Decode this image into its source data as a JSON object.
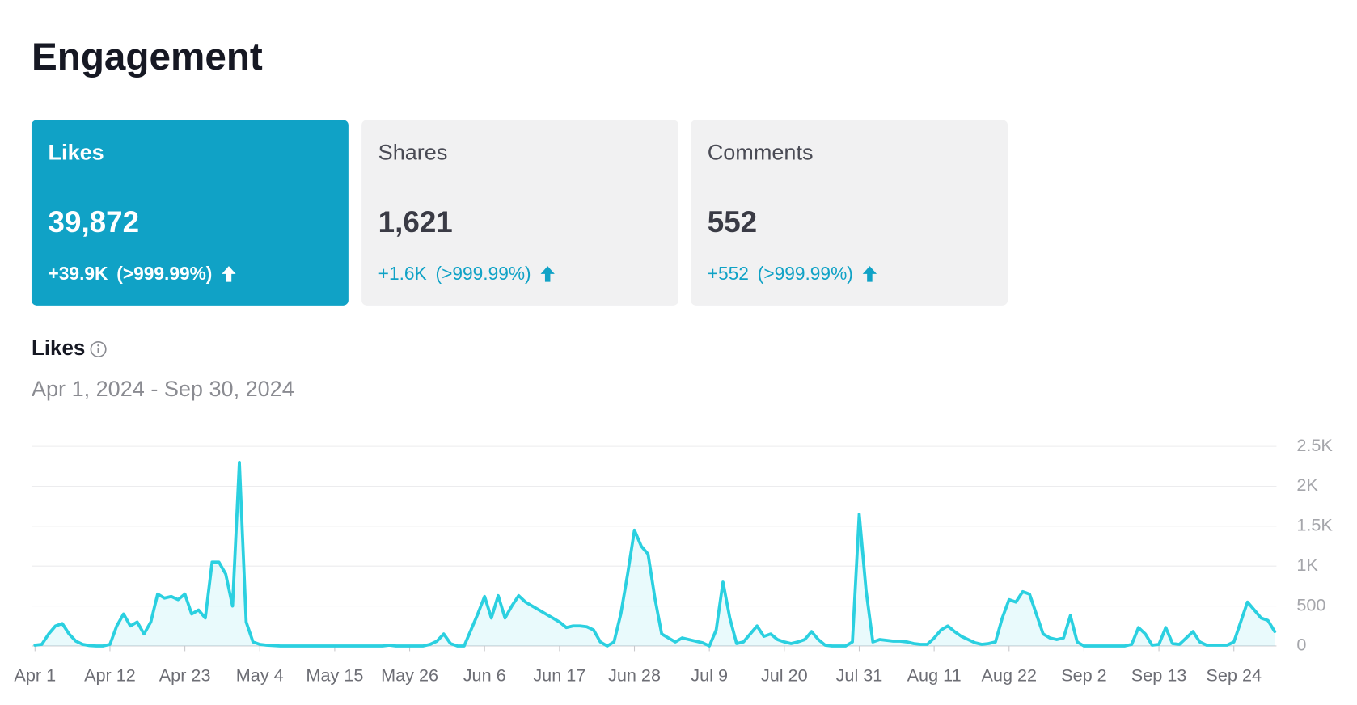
{
  "header": {
    "title": "Engagement"
  },
  "cards": [
    {
      "label": "Likes",
      "value": "39,872",
      "change": "+39.9K",
      "percent": "(>999.99%)"
    },
    {
      "label": "Shares",
      "value": "1,621",
      "change": "+1.6K",
      "percent": "(>999.99%)"
    },
    {
      "label": "Comments",
      "value": "552",
      "change": "+552",
      "percent": "(>999.99%)"
    }
  ],
  "chart_data": {
    "type": "line",
    "title": "Likes",
    "subtitle": "Apr 1, 2024 - Sep 30, 2024",
    "color": "#2bd0e0",
    "grid": true,
    "categories": [
      "Apr 1",
      null,
      null,
      null,
      null,
      null,
      null,
      null,
      null,
      null,
      null,
      "Apr 12",
      null,
      null,
      null,
      null,
      null,
      null,
      null,
      null,
      null,
      null,
      "Apr 23",
      null,
      null,
      null,
      null,
      null,
      null,
      null,
      null,
      null,
      null,
      "May 4",
      null,
      null,
      null,
      null,
      null,
      null,
      null,
      null,
      null,
      null,
      "May 15",
      null,
      null,
      null,
      null,
      null,
      null,
      null,
      null,
      null,
      null,
      "May 26",
      null,
      null,
      null,
      null,
      null,
      null,
      null,
      null,
      null,
      null,
      "Jun 6",
      null,
      null,
      null,
      null,
      null,
      null,
      null,
      null,
      null,
      null,
      "Jun 17",
      null,
      null,
      null,
      null,
      null,
      null,
      null,
      null,
      null,
      null,
      "Jun 28",
      null,
      null,
      null,
      null,
      null,
      null,
      null,
      null,
      null,
      null,
      "Jul 9",
      null,
      null,
      null,
      null,
      null,
      null,
      null,
      null,
      null,
      null,
      "Jul 20",
      null,
      null,
      null,
      null,
      null,
      null,
      null,
      null,
      null,
      null,
      "Jul 31",
      null,
      null,
      null,
      null,
      null,
      null,
      null,
      null,
      null,
      null,
      "Aug 11",
      null,
      null,
      null,
      null,
      null,
      null,
      null,
      null,
      null,
      null,
      "Aug 22",
      null,
      null,
      null,
      null,
      null,
      null,
      null,
      null,
      null,
      null,
      "Sep 2",
      null,
      null,
      null,
      null,
      null,
      null,
      null,
      null,
      null,
      null,
      "Sep 13",
      null,
      null,
      null,
      null,
      null,
      null,
      null,
      null,
      null,
      null,
      "Sep 24",
      null,
      null,
      null,
      null,
      null,
      null
    ],
    "values": [
      10,
      20,
      150,
      250,
      280,
      150,
      60,
      20,
      5,
      0,
      0,
      20,
      250,
      400,
      250,
      300,
      150,
      300,
      650,
      600,
      620,
      580,
      650,
      400,
      450,
      350,
      1050,
      1050,
      900,
      500,
      2300,
      300,
      50,
      20,
      10,
      5,
      0,
      0,
      0,
      0,
      0,
      0,
      0,
      0,
      0,
      0,
      0,
      0,
      0,
      0,
      0,
      0,
      10,
      0,
      0,
      0,
      0,
      0,
      20,
      60,
      150,
      30,
      0,
      0,
      200,
      400,
      620,
      350,
      630,
      350,
      500,
      630,
      550,
      500,
      450,
      400,
      350,
      300,
      230,
      250,
      250,
      240,
      200,
      50,
      0,
      50,
      400,
      900,
      1450,
      1250,
      1150,
      600,
      150,
      100,
      50,
      100,
      80,
      60,
      40,
      0,
      200,
      800,
      350,
      30,
      50,
      150,
      250,
      120,
      150,
      80,
      50,
      30,
      50,
      80,
      180,
      80,
      10,
      0,
      0,
      0,
      50,
      1650,
      700,
      50,
      80,
      70,
      60,
      60,
      50,
      30,
      20,
      20,
      100,
      200,
      250,
      180,
      120,
      80,
      40,
      20,
      30,
      50,
      350,
      580,
      550,
      680,
      650,
      400,
      150,
      100,
      80,
      100,
      380,
      50,
      0,
      0,
      0,
      0,
      0,
      0,
      0,
      20,
      230,
      150,
      10,
      20,
      230,
      30,
      20,
      100,
      180,
      50,
      10,
      10,
      10,
      10,
      50,
      300,
      550,
      450,
      350,
      320,
      180
    ],
    "ylim": [
      0,
      2500
    ],
    "yticks": [
      0,
      500,
      {
        "value": 1000,
        "label": "1K"
      },
      {
        "value": 1500,
        "label": "1.5K"
      },
      {
        "value": 2000,
        "label": "2K"
      },
      {
        "value": 2500,
        "label": "2.5K"
      }
    ]
  }
}
